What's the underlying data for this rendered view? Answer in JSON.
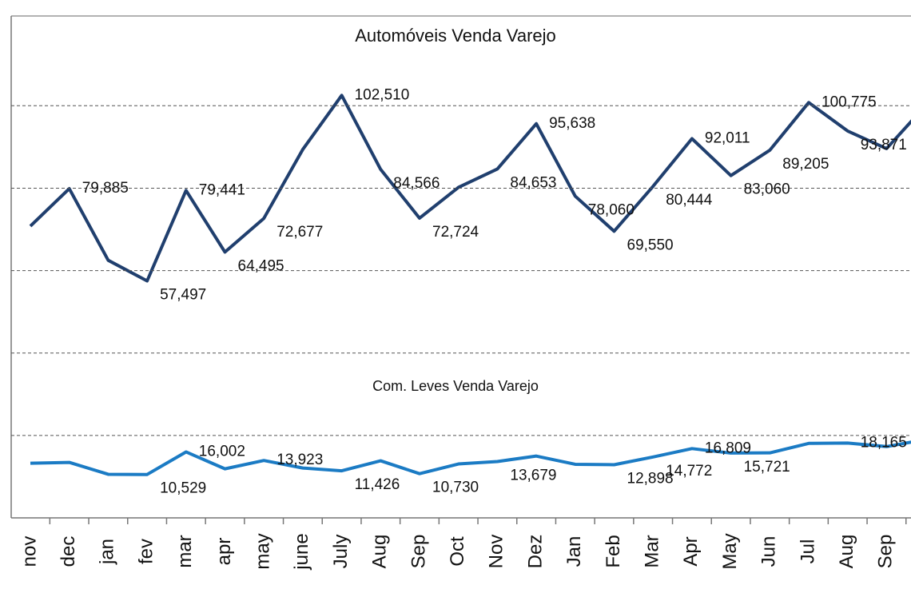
{
  "chart_data": {
    "type": "line",
    "title": "Automóveis Venda Varejo",
    "subtitle": "Com. Leves Venda Varejo",
    "categories": [
      "nov",
      "dec",
      "jan",
      "fev",
      "mar",
      "apr",
      "may",
      "june",
      "July",
      "Aug",
      "Sep",
      "Oct",
      "Nov",
      "Dez",
      "Jan",
      "Feb",
      "Mar",
      "Apr",
      "May",
      "Jun",
      "Jul",
      "Aug",
      "Sep",
      null
    ],
    "series": [
      {
        "name": "Automóveis Venda Varejo",
        "color": "#203f6e",
        "values": [
          70800,
          79885,
          62500,
          57497,
          79441,
          64495,
          72677,
          89400,
          102510,
          84566,
          72724,
          80200,
          84653,
          95638,
          78060,
          69550,
          80444,
          92011,
          83060,
          89205,
          100775,
          93871,
          89600,
          100000
        ],
        "value_labels": [
          null,
          "79,885",
          null,
          "57,497",
          "79,441",
          "64,495",
          "72,677",
          null,
          "102,510",
          "84,566",
          "72,724",
          null,
          "84,653",
          "95,638",
          "78,060",
          "69,550",
          "80,444",
          "92,011",
          "83,060",
          "89,205",
          "100,775",
          "93,871",
          null,
          null
        ]
      },
      {
        "name": "Com. Leves Venda Varejo",
        "color": "#1b7bc4",
        "values": [
          13270,
          13460,
          10580,
          10529,
          16002,
          11900,
          13923,
          12100,
          11426,
          13850,
          10730,
          13080,
          13679,
          15000,
          13000,
          12898,
          14772,
          16809,
          15721,
          15770,
          18080,
          18165,
          17300,
          19000
        ],
        "value_labels": [
          null,
          null,
          null,
          "10,529",
          "16,002",
          null,
          "13,923",
          null,
          "11,426",
          null,
          "10,730",
          null,
          "13,679",
          null,
          null,
          "12,898",
          "14,772",
          "16,809",
          "15,721",
          null,
          null,
          "18,165",
          null,
          null
        ]
      }
    ],
    "ylim": [
      0,
      121000
    ],
    "yticks": [
      0,
      20000,
      40000,
      60000,
      80000,
      100000
    ],
    "grid": true
  }
}
